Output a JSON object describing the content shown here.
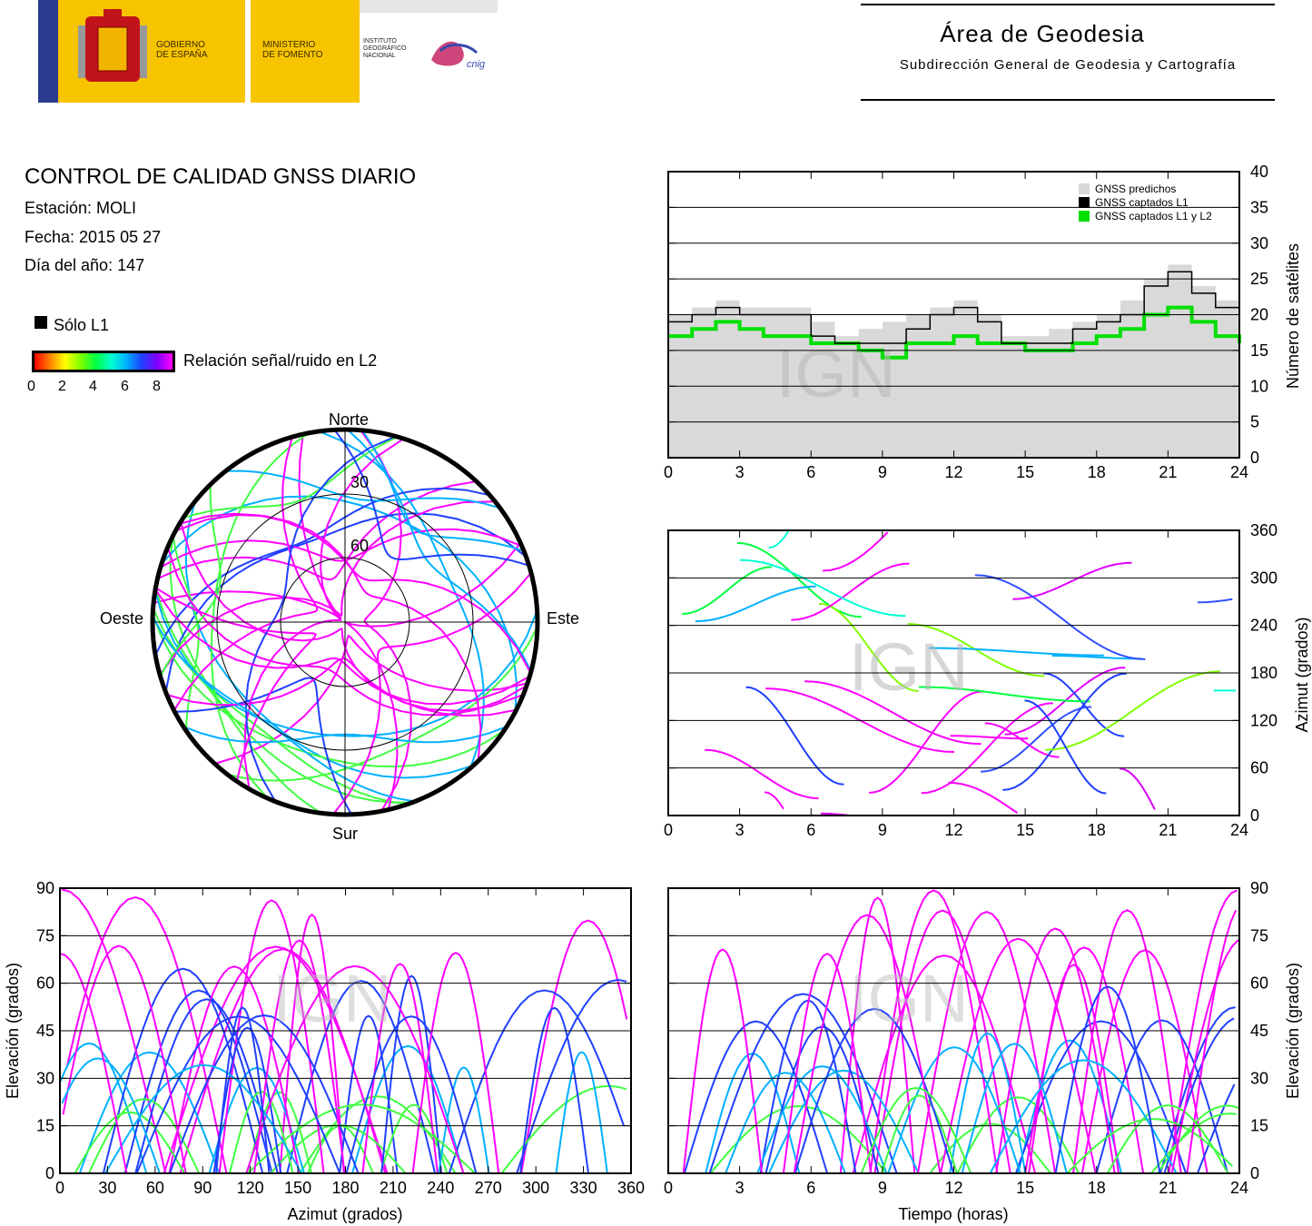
{
  "header": {
    "gobierno": "GOBIERNO\nDE ESPAÑA",
    "ministerio": "MINISTERIO\nDE FOMENTO",
    "instituto": "INSTITUTO\nGEOGRÁFICO\nNACIONAL",
    "cnig": "cnig",
    "area_title": "Área de Geodesia",
    "area_subtitle": "Subdirección General de Geodesia y Cartografía"
  },
  "info": {
    "title": "CONTROL DE CALIDAD GNSS DIARIO",
    "station": "Estación: MOLI",
    "date": "Fecha: 2015 05 27",
    "doy": "Día del año: 147"
  },
  "legend": {
    "solo_l1": "Sólo L1",
    "snr_label": "Relación señal/ruido en L2",
    "snr_ticks": [
      "0",
      "2",
      "4",
      "6",
      "8"
    ]
  },
  "watermark": "IGN",
  "colors": {
    "predicted": "#d9d9d9",
    "captured_l1": "#000000",
    "captured_l1_l2": "#00e000",
    "snr_scale": [
      "#ff0000",
      "#ff8000",
      "#ffff00",
      "#80ff00",
      "#00ff40",
      "#00ffd0",
      "#00b0ff",
      "#2040ff",
      "#8000ff",
      "#ff00ff"
    ]
  },
  "chart_data": [
    {
      "id": "skyplot",
      "type": "scatter",
      "title": "",
      "directions": {
        "north": "Norte",
        "south": "Sur",
        "east": "Este",
        "west": "Oeste"
      },
      "elevation_rings": [
        "30",
        "60"
      ],
      "note_points": "dense satellite tracks coloured by L2 SNR (0-8)"
    },
    {
      "id": "satellites",
      "type": "area",
      "ylabel": "Número de satélites",
      "xlim": [
        0,
        24
      ],
      "ylim": [
        0,
        40
      ],
      "xticks": [
        "0",
        "3",
        "6",
        "9",
        "12",
        "15",
        "18",
        "21",
        "24"
      ],
      "yticks": [
        "0",
        "5",
        "10",
        "15",
        "20",
        "25",
        "30",
        "35",
        "40"
      ],
      "grid": true,
      "legend_position": "top-right",
      "series": [
        {
          "name": "GNSS predichos",
          "x": [
            0,
            1,
            2,
            3,
            4,
            5,
            6,
            7,
            8,
            9,
            10,
            11,
            12,
            13,
            14,
            15,
            16,
            17,
            18,
            19,
            20,
            21,
            22,
            23,
            24
          ],
          "values": [
            20,
            21,
            22,
            21,
            21,
            21,
            19,
            17,
            18,
            19,
            20,
            21,
            22,
            20,
            17,
            17,
            18,
            19,
            20,
            22,
            25,
            27,
            24,
            22,
            20
          ]
        },
        {
          "name": "GNSS captados L1",
          "x": [
            0,
            1,
            2,
            3,
            4,
            5,
            6,
            7,
            8,
            9,
            10,
            11,
            12,
            13,
            14,
            15,
            16,
            17,
            18,
            19,
            20,
            21,
            22,
            23,
            24
          ],
          "values": [
            19,
            20,
            21,
            20,
            20,
            20,
            17,
            16,
            16,
            16,
            18,
            20,
            21,
            19,
            16,
            16,
            16,
            18,
            19,
            20,
            24,
            26,
            23,
            21,
            19
          ]
        },
        {
          "name": "GNSS captados L1 y L2",
          "x": [
            0,
            1,
            2,
            3,
            4,
            5,
            6,
            7,
            8,
            9,
            10,
            11,
            12,
            13,
            14,
            15,
            16,
            17,
            18,
            19,
            20,
            21,
            22,
            23,
            24
          ],
          "values": [
            17,
            18,
            19,
            18,
            17,
            17,
            16,
            16,
            15,
            14,
            16,
            16,
            17,
            16,
            16,
            15,
            15,
            16,
            17,
            18,
            20,
            21,
            19,
            17,
            16
          ]
        }
      ]
    },
    {
      "id": "azimuth_time",
      "type": "scatter",
      "ylabel": "Azimut (grados)",
      "xlim": [
        0,
        24
      ],
      "ylim": [
        0,
        360
      ],
      "xticks": [
        "0",
        "3",
        "6",
        "9",
        "12",
        "15",
        "18",
        "21",
        "24"
      ],
      "yticks": [
        "0",
        "60",
        "120",
        "180",
        "240",
        "300",
        "360"
      ],
      "grid": true
    },
    {
      "id": "elevation_azimuth",
      "type": "scatter",
      "xlabel": "Azimut (grados)",
      "ylabel": "Elevación (grados)",
      "xlim": [
        0,
        360
      ],
      "ylim": [
        0,
        90
      ],
      "xticks": [
        "0",
        "30",
        "60",
        "90",
        "120",
        "150",
        "180",
        "210",
        "240",
        "270",
        "300",
        "330",
        "360"
      ],
      "yticks": [
        "0",
        "15",
        "30",
        "45",
        "60",
        "75",
        "90"
      ],
      "grid": true
    },
    {
      "id": "elevation_time",
      "type": "scatter",
      "xlabel": "Tiempo (horas)",
      "ylabel": "Elevación (grados)",
      "xlim": [
        0,
        24
      ],
      "ylim": [
        0,
        90
      ],
      "xticks": [
        "0",
        "3",
        "6",
        "9",
        "12",
        "15",
        "18",
        "21",
        "24"
      ],
      "yticks": [
        "0",
        "15",
        "30",
        "45",
        "60",
        "75",
        "90"
      ],
      "grid": true
    }
  ]
}
